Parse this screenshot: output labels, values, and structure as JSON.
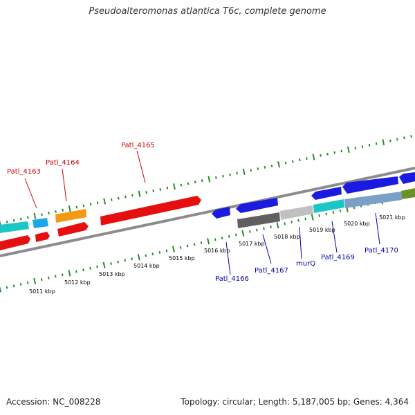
{
  "title": "Pseudoalteromonas atlantica T6c, complete genome",
  "accession": "Accession: NC_008228",
  "summary": "Topology: circular; Length: 5,187,005 bp; Genes: 4,364",
  "colors": {
    "backbone": "#8c8c8c",
    "ticks": "#2a8a2a",
    "forward_label": "#cc0000",
    "reverse_label": "#0000aa",
    "tick_label": "#000000"
  },
  "kbp_labels": [
    "5011 kbp",
    "5012 kbp",
    "5013 kbp",
    "5014 kbp",
    "5015 kbp",
    "5016 kbp",
    "5017 kbp",
    "5018 kbp",
    "5019 kbp",
    "5020 kbp",
    "5021 kbp"
  ],
  "gene_labels": [
    {
      "text": "Patl_4163",
      "strand": "forward"
    },
    {
      "text": "Patl_4164",
      "strand": "forward"
    },
    {
      "text": "Patl_4165",
      "strand": "forward"
    },
    {
      "text": "Patl_4166",
      "strand": "reverse"
    },
    {
      "text": "Patl_4167",
      "strand": "reverse"
    },
    {
      "text": "murQ",
      "strand": "reverse"
    },
    {
      "text": "Patl_4169",
      "strand": "reverse"
    },
    {
      "text": "Patl_4170",
      "strand": "reverse"
    }
  ]
}
